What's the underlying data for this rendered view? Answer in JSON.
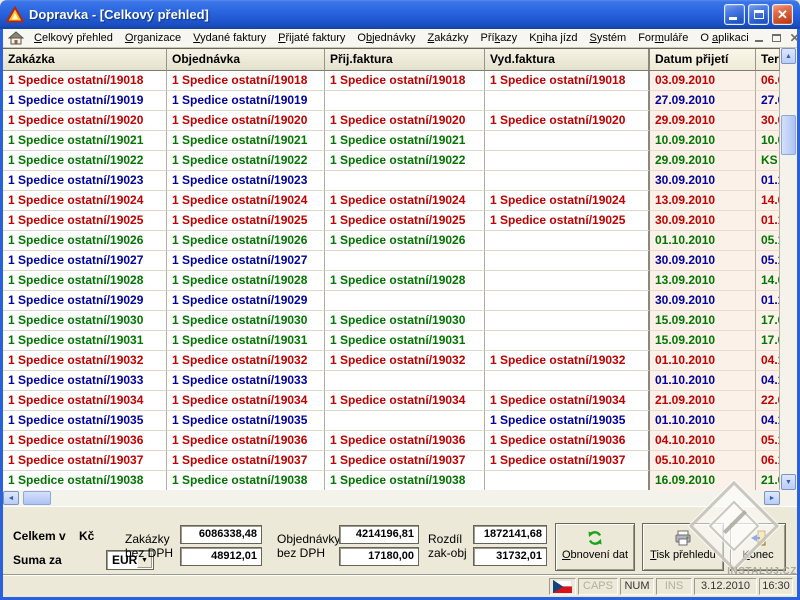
{
  "window": {
    "title": "Dopravka - [Celkový přehled]",
    "controls": [
      "minimize",
      "maximize",
      "close"
    ]
  },
  "menu": {
    "items": [
      {
        "label": "Celkový přehled",
        "mnemonic": 0
      },
      {
        "label": "Organizace",
        "mnemonic": 0
      },
      {
        "label": "Vydané faktury",
        "mnemonic": 0
      },
      {
        "label": "Přijaté faktury",
        "mnemonic": 0
      },
      {
        "label": "Objednávky",
        "mnemonic": 1
      },
      {
        "label": "Zakázky",
        "mnemonic": 0
      },
      {
        "label": "Příkazy",
        "mnemonic": 3
      },
      {
        "label": "Kniha jízd",
        "mnemonic": 1
      },
      {
        "label": "Systém",
        "mnemonic": 0
      },
      {
        "label": "Formuláře",
        "mnemonic": 3
      },
      {
        "label": "O aplikaci",
        "mnemonic": 2
      }
    ]
  },
  "table": {
    "columns": [
      "Zakázka",
      "Objednávka",
      "Přij.faktura",
      "Vyd.faktura",
      "Datum přijetí",
      "Termín"
    ],
    "rows": [
      {
        "color": "red",
        "zakazka": "1 Spedice ostatní/19018",
        "objednavka": "1 Spedice ostatní/19018",
        "prij_faktura": "1 Spedice ostatní/19018",
        "vyd_faktura": "1 Spedice ostatní/19018",
        "datum": "03.09.2010",
        "termin": "06.0"
      },
      {
        "color": "blue",
        "zakazka": "1 Spedice ostatní/19019",
        "objednavka": "1 Spedice ostatní/19019",
        "prij_faktura": "",
        "vyd_faktura": "",
        "datum": "27.09.2010",
        "termin": "27.0"
      },
      {
        "color": "red",
        "zakazka": "1 Spedice ostatní/19020",
        "objednavka": "1 Spedice ostatní/19020",
        "prij_faktura": "1 Spedice ostatní/19020",
        "vyd_faktura": "1 Spedice ostatní/19020",
        "datum": "29.09.2010",
        "termin": "30.0"
      },
      {
        "color": "green",
        "zakazka": "1 Spedice ostatní/19021",
        "objednavka": "1 Spedice ostatní/19021",
        "prij_faktura": "1 Spedice ostatní/19021",
        "vyd_faktura": "",
        "datum": "10.09.2010",
        "termin": "10.0"
      },
      {
        "color": "green",
        "zakazka": "1 Spedice ostatní/19022",
        "objednavka": "1 Spedice ostatní/19022",
        "prij_faktura": "1 Spedice ostatní/19022",
        "vyd_faktura": "",
        "datum": "29.09.2010",
        "termin": "KS K"
      },
      {
        "color": "blue",
        "zakazka": "1 Spedice ostatní/19023",
        "objednavka": "1 Spedice ostatní/19023",
        "prij_faktura": "",
        "vyd_faktura": "",
        "datum": "30.09.2010",
        "termin": "01.1"
      },
      {
        "color": "red",
        "zakazka": "1 Spedice ostatní/19024",
        "objednavka": "1 Spedice ostatní/19024",
        "prij_faktura": "1 Spedice ostatní/19024",
        "vyd_faktura": "1 Spedice ostatní/19024",
        "datum": "13.09.2010",
        "termin": "14.0"
      },
      {
        "color": "red",
        "zakazka": "1 Spedice ostatní/19025",
        "objednavka": "1 Spedice ostatní/19025",
        "prij_faktura": "1 Spedice ostatní/19025",
        "vyd_faktura": "1 Spedice ostatní/19025",
        "datum": "30.09.2010",
        "termin": "01.1"
      },
      {
        "color": "green",
        "zakazka": "1 Spedice ostatní/19026",
        "objednavka": "1 Spedice ostatní/19026",
        "prij_faktura": "1 Spedice ostatní/19026",
        "vyd_faktura": "",
        "datum": "01.10.2010",
        "termin": "05.1"
      },
      {
        "color": "blue",
        "zakazka": "1 Spedice ostatní/19027",
        "objednavka": "1 Spedice ostatní/19027",
        "prij_faktura": "",
        "vyd_faktura": "",
        "datum": "30.09.2010",
        "termin": "05.1"
      },
      {
        "color": "green",
        "zakazka": "1 Spedice ostatní/19028",
        "objednavka": "1 Spedice ostatní/19028",
        "prij_faktura": "1 Spedice ostatní/19028",
        "vyd_faktura": "",
        "datum": "13.09.2010",
        "termin": "14.0"
      },
      {
        "color": "blue",
        "zakazka": "1 Spedice ostatní/19029",
        "objednavka": "1 Spedice ostatní/19029",
        "prij_faktura": "",
        "vyd_faktura": "",
        "datum": "30.09.2010",
        "termin": "01.1"
      },
      {
        "color": "green",
        "zakazka": "1 Spedice ostatní/19030",
        "objednavka": "1 Spedice ostatní/19030",
        "prij_faktura": "1 Spedice ostatní/19030",
        "vyd_faktura": "",
        "datum": "15.09.2010",
        "termin": "17.0"
      },
      {
        "color": "green",
        "zakazka": "1 Spedice ostatní/19031",
        "objednavka": "1 Spedice ostatní/19031",
        "prij_faktura": "1 Spedice ostatní/19031",
        "vyd_faktura": "",
        "datum": "15.09.2010",
        "termin": "17.0"
      },
      {
        "color": "red",
        "zakazka": "1 Spedice ostatní/19032",
        "objednavka": "1 Spedice ostatní/19032",
        "prij_faktura": "1 Spedice ostatní/19032",
        "vyd_faktura": "1 Spedice ostatní/19032",
        "datum": "01.10.2010",
        "termin": "04.1"
      },
      {
        "color": "blue",
        "zakazka": "1 Spedice ostatní/19033",
        "objednavka": "1 Spedice ostatní/19033",
        "prij_faktura": "",
        "vyd_faktura": "",
        "datum": "01.10.2010",
        "termin": "04.1"
      },
      {
        "color": "red",
        "zakazka": "1 Spedice ostatní/19034",
        "objednavka": "1 Spedice ostatní/19034",
        "prij_faktura": "1 Spedice ostatní/19034",
        "vyd_faktura": "1 Spedice ostatní/19034",
        "datum": "21.09.2010",
        "termin": "22.0"
      },
      {
        "color": "blue",
        "zakazka": "1 Spedice ostatní/19035",
        "objednavka": "1 Spedice ostatní/19035",
        "prij_faktura": "",
        "vyd_faktura": "1 Spedice ostatní/19035",
        "datum": "01.10.2010",
        "termin": "04.1"
      },
      {
        "color": "red",
        "zakazka": "1 Spedice ostatní/19036",
        "objednavka": "1 Spedice ostatní/19036",
        "prij_faktura": "1 Spedice ostatní/19036",
        "vyd_faktura": "1 Spedice ostatní/19036",
        "datum": "04.10.2010",
        "termin": "05.1"
      },
      {
        "color": "red",
        "zakazka": "1 Spedice ostatní/19037",
        "objednavka": "1 Spedice ostatní/19037",
        "prij_faktura": "1 Spedice ostatní/19037",
        "vyd_faktura": "1 Spedice ostatní/19037",
        "datum": "05.10.2010",
        "termin": "06.1"
      },
      {
        "color": "green",
        "zakazka": "1 Spedice ostatní/19038",
        "objednavka": "1 Spedice ostatní/19038",
        "prij_faktura": "1 Spedice ostatní/19038",
        "vyd_faktura": "",
        "datum": "16.09.2010",
        "termin": "21.0"
      }
    ]
  },
  "footer": {
    "celkem_label": "Celkem v",
    "celkem_unit": "Kč",
    "suma_label": "Suma za",
    "suma_currency": "EUR",
    "zakazky_label": "Zakázky bez DPH",
    "zakazky_kc": "6086338,48",
    "zakazky_eur": "48912,01",
    "objednavky_label": "Objednávky bez DPH",
    "objednavky_kc": "4214196,81",
    "objednavky_eur": "17180,00",
    "rozdil_label": "Rozdíl zak-obj",
    "rozdil_kc": "1872141,68",
    "rozdil_eur": "31732,01",
    "refresh_button": {
      "label": "Obnovení dat",
      "mnemonic": 0
    },
    "print_button": {
      "label": "Tisk přehledu",
      "mnemonic": 0
    },
    "exit_button": {
      "label": "Konec",
      "mnemonic": 0
    }
  },
  "statusbar": {
    "caps": "CAPS",
    "num": "NUM",
    "ins": "INS",
    "date": "3.12.2010",
    "time": "16:30",
    "flag": "czech-flag"
  },
  "watermark": "INSTALUJ.CZ",
  "icons": {
    "app": "triangle-logo-icon",
    "menu_home": "home-icon",
    "refresh": "refresh-arrows-icon",
    "print": "printer-icon",
    "exit": "exit-door-icon"
  },
  "colors": {
    "row_red": "#C00000",
    "row_blue": "#0000A0",
    "row_green": "#007600",
    "titlebar_blue": "#2863DE",
    "close_button_red": "#D75432",
    "header_bg": "#EDE9D8",
    "date_col_bg": "#FBF1E8",
    "panel_bg": "#ECE9D8"
  }
}
